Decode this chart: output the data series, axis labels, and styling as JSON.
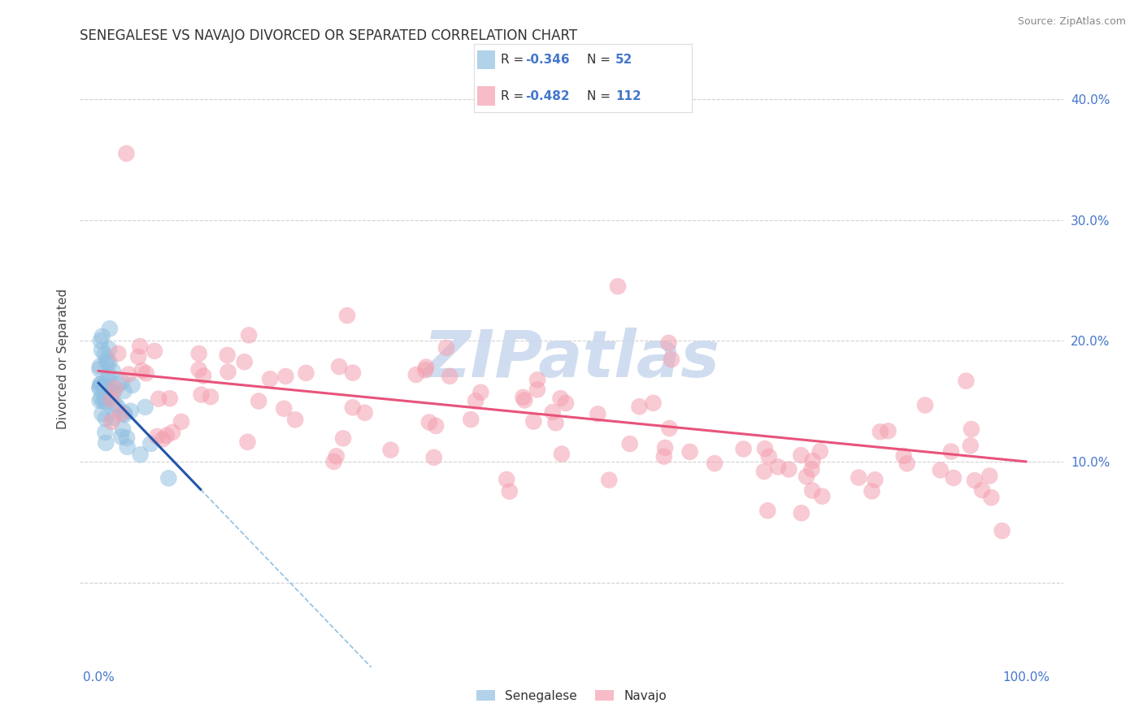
{
  "title": "SENEGALESE VS NAVAJO DIVORCED OR SEPARATED CORRELATION CHART",
  "source_text": "Source: ZipAtlas.com",
  "ylabel": "Divorced or Separated",
  "senegalese_color": "#92c0e0",
  "navajo_color": "#f4a0b0",
  "senegalese_line_color": "#2255aa",
  "navajo_line_color": "#e8537a",
  "senegalese_dash_color": "#92c0e0",
  "background_color": "#ffffff",
  "grid_color": "#cccccc",
  "title_color": "#333333",
  "watermark": "ZIPatlas",
  "watermark_color": "#c8d8ee",
  "axis_tick_color": "#4477cc",
  "legend_text_color": "#4477cc",
  "legend_r_label": "R = ",
  "legend_n_label": "N = ",
  "sen_r_val": "-0.346",
  "sen_n_val": "52",
  "nav_r_val": "-0.482",
  "nav_n_val": "112",
  "ytick_positions": [
    0,
    10,
    20,
    30,
    40
  ],
  "ytick_labels": [
    "",
    "10.0%",
    "20.0%",
    "30.0%",
    "40.0%"
  ],
  "xtick_positions": [
    0,
    10,
    20,
    30,
    40,
    50,
    60,
    70,
    80,
    90,
    100
  ],
  "xtick_labels": [
    "0.0%",
    "",
    "",
    "",
    "",
    "",
    "",
    "",
    "",
    "",
    "100.0%"
  ],
  "xlim": [
    -2,
    104
  ],
  "ylim": [
    -7,
    44
  ],
  "nav_intercept": 17.5,
  "nav_slope": -0.075,
  "sen_intercept": 16.5,
  "sen_slope": -0.8,
  "sen_solid_x_end": 11,
  "bottom_legend_labels": [
    "Senegalese",
    "Navajo"
  ]
}
